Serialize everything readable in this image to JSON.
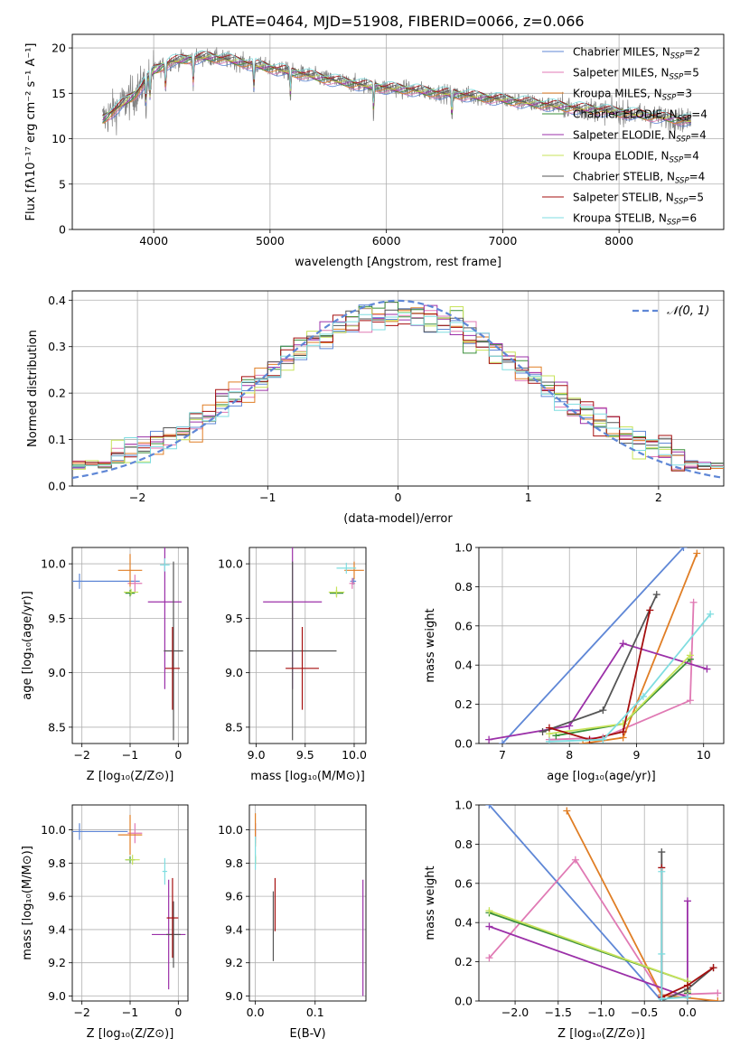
{
  "colors": {
    "Chabrier MILES": "#5f87d6",
    "Salpeter MILES": "#e07ab4",
    "Kroupa MILES": "#e07e25",
    "Chabrier ELODIE": "#3a8f3a",
    "Salpeter ELODIE": "#9b30a8",
    "Kroupa ELODIE": "#c7e35a",
    "Chabrier STELIB": "#555555",
    "Salpeter STELIB": "#a50f0f",
    "Kroupa STELIB": "#7fdde0"
  },
  "chart_data": [
    {
      "id": "spectrum",
      "type": "line",
      "title": "PLATE=0464, MJD=51908, FIBERID=0066, z=0.066",
      "xlabel": "wavelength [Angstrom, rest frame]",
      "ylabel": "Flux [fλ10⁻¹⁷ erg cm⁻² s⁻¹ A⁻¹]",
      "xlim": [
        3300,
        8900
      ],
      "ylim": [
        0,
        21.5
      ],
      "xticks": [
        4000,
        5000,
        6000,
        7000,
        8000
      ],
      "yticks": [
        0,
        5,
        10,
        15,
        20
      ],
      "legend_position": "top-right",
      "legend": [
        {
          "model": "Chabrier MILES",
          "nssp": "2"
        },
        {
          "model": "Salpeter MILES",
          "nssp": "5"
        },
        {
          "model": "Kroupa MILES",
          "nssp": "3"
        },
        {
          "model": "Chabrier ELODIE",
          "nssp": "4"
        },
        {
          "model": "Salpeter ELODIE",
          "nssp": "4"
        },
        {
          "model": "Kroupa ELODIE",
          "nssp": "4"
        },
        {
          "model": "Chabrier STELIB",
          "nssp": "4"
        },
        {
          "model": "Salpeter STELIB",
          "nssp": "5"
        },
        {
          "model": "Kroupa STELIB",
          "nssp": "6"
        }
      ],
      "data_continuum": {
        "x": [
          3550,
          3700,
          3850,
          4000,
          4150,
          4300,
          4450,
          4600,
          4800,
          5000,
          5200,
          5400,
          5600,
          5800,
          6000,
          6200,
          6400,
          6600,
          6800,
          7000,
          7200,
          7400,
          7600,
          7800,
          8000,
          8200,
          8400,
          8600
        ],
        "y": [
          12,
          13.5,
          15,
          17.5,
          18.5,
          18.8,
          19,
          18.8,
          18.3,
          17.8,
          17.3,
          16.8,
          16.3,
          15.9,
          15.6,
          15.4,
          15.1,
          14.9,
          14.6,
          14.3,
          14.0,
          13.7,
          13.4,
          13.2,
          12.9,
          12.6,
          12.3,
          12.0
        ]
      }
    },
    {
      "id": "residuals",
      "type": "histogram",
      "xlabel": "(data-model)/error",
      "ylabel": "Normed distribution",
      "xlim": [
        -2.5,
        2.5
      ],
      "ylim": [
        0,
        0.42
      ],
      "xticks": [
        -2,
        -1,
        0,
        1,
        2
      ],
      "yticks": [
        0.0,
        0.1,
        0.2,
        0.3,
        0.4
      ],
      "legend_position": "top-right",
      "reference_curve": {
        "label": "𝒩(0, 1)",
        "mean": 0,
        "sigma": 1
      },
      "bin_width": 0.1
    },
    {
      "id": "age-vs-Z",
      "type": "errorbar",
      "xlabel": "Z [log₁₀(Z/Z⊙)]",
      "ylabel": "age  [log₁₀(age/yr)]",
      "xlim": [
        -2.2,
        0.2
      ],
      "ylim": [
        8.35,
        10.15
      ],
      "xticks": [
        -2,
        -1,
        0
      ],
      "yticks": [
        8.5,
        9.0,
        9.5,
        10.0
      ],
      "points": [
        {
          "model": "Chabrier MILES",
          "x": -2.05,
          "xerr": 1.25,
          "y": 9.84,
          "yerr": 0.07
        },
        {
          "model": "Salpeter MILES",
          "x": -0.9,
          "xerr": 0.15,
          "y": 9.82,
          "yerr": 0.08
        },
        {
          "model": "Kroupa MILES",
          "x": -1.0,
          "xerr": 0.25,
          "y": 9.94,
          "yerr": 0.15
        },
        {
          "model": "Chabrier ELODIE",
          "x": -1.0,
          "xerr": 0.1,
          "y": 9.73,
          "yerr": 0.03
        },
        {
          "model": "Salpeter ELODIE",
          "x": -0.28,
          "xerr": 0.35,
          "y": 9.65,
          "yerr": 0.8
        },
        {
          "model": "Kroupa ELODIE",
          "x": -0.98,
          "xerr": 0.15,
          "y": 9.74,
          "yerr": 0.03
        },
        {
          "model": "Chabrier STELIB",
          "x": -0.1,
          "xerr": 0.2,
          "y": 9.2,
          "yerr": 0.82
        },
        {
          "model": "Salpeter STELIB",
          "x": -0.12,
          "xerr": 0.15,
          "y": 9.04,
          "yerr": 0.38
        },
        {
          "model": "Kroupa STELIB",
          "x": -0.28,
          "xerr": 0.1,
          "y": 9.99,
          "yerr": 0.06
        }
      ]
    },
    {
      "id": "age-vs-mass",
      "type": "errorbar",
      "xlabel": "mass [log₁₀(M/M⊙)]",
      "ylabel": "",
      "xlim": [
        8.93,
        10.12
      ],
      "ylim": [
        8.35,
        10.15
      ],
      "xticks": [
        9.0,
        9.5,
        10.0
      ],
      "yticks": [
        8.5,
        9.0,
        9.5,
        10.0
      ],
      "points": [
        {
          "model": "Chabrier MILES",
          "x": 9.99,
          "xerr": 0.03,
          "y": 9.84,
          "yerr": 0.03
        },
        {
          "model": "Salpeter MILES",
          "x": 9.98,
          "xerr": 0.03,
          "y": 9.82,
          "yerr": 0.05
        },
        {
          "model": "Kroupa MILES",
          "x": 10.0,
          "xerr": 0.1,
          "y": 9.94,
          "yerr": 0.08
        },
        {
          "model": "Chabrier ELODIE",
          "x": 9.82,
          "xerr": 0.07,
          "y": 9.73,
          "yerr": 0.03
        },
        {
          "model": "Salpeter ELODIE",
          "x": 9.37,
          "xerr": 0.3,
          "y": 9.65,
          "yerr": 0.8
        },
        {
          "model": "Kroupa ELODIE",
          "x": 9.82,
          "xerr": 0.08,
          "y": 9.74,
          "yerr": 0.05
        },
        {
          "model": "Chabrier STELIB",
          "x": 9.37,
          "xerr": 0.45,
          "y": 9.2,
          "yerr": 0.82
        },
        {
          "model": "Salpeter STELIB",
          "x": 9.47,
          "xerr": 0.17,
          "y": 9.04,
          "yerr": 0.38
        },
        {
          "model": "Kroupa STELIB",
          "x": 9.92,
          "xerr": 0.1,
          "y": 9.96,
          "yerr": 0.05
        }
      ]
    },
    {
      "id": "mass-weight-vs-age",
      "type": "line",
      "xlabel": "age  [log₁₀(age/yr)]",
      "ylabel": "mass weight",
      "xlim": [
        6.65,
        10.3
      ],
      "ylim": [
        0,
        1
      ],
      "xticks": [
        7,
        8,
        9,
        10
      ],
      "yticks": [
        0.0,
        0.2,
        0.4,
        0.6,
        0.8,
        1.0
      ],
      "series": [
        {
          "model": "Chabrier MILES",
          "x": [
            7.0,
            9.7
          ],
          "y": [
            0.0,
            1.0
          ]
        },
        {
          "model": "Salpeter MILES",
          "x": [
            7.7,
            8.5,
            9.8,
            9.85
          ],
          "y": [
            0.02,
            0.03,
            0.22,
            0.72
          ]
        },
        {
          "model": "Kroupa MILES",
          "x": [
            8.2,
            8.8,
            9.9
          ],
          "y": [
            0.0,
            0.03,
            0.97
          ]
        },
        {
          "model": "Chabrier ELODIE",
          "x": [
            7.8,
            8.8,
            9.8
          ],
          "y": [
            0.04,
            0.1,
            0.43
          ]
        },
        {
          "model": "Salpeter ELODIE",
          "x": [
            6.8,
            8.0,
            8.8,
            10.05
          ],
          "y": [
            0.02,
            0.09,
            0.51,
            0.38
          ]
        },
        {
          "model": "Kroupa ELODIE",
          "x": [
            7.7,
            8.8,
            9.8
          ],
          "y": [
            0.05,
            0.1,
            0.45
          ]
        },
        {
          "model": "Chabrier STELIB",
          "x": [
            7.6,
            8.5,
            9.3
          ],
          "y": [
            0.06,
            0.17,
            0.76
          ]
        },
        {
          "model": "Salpeter STELIB",
          "x": [
            7.7,
            8.3,
            8.8,
            9.2
          ],
          "y": [
            0.08,
            0.02,
            0.06,
            0.68
          ]
        },
        {
          "model": "Kroupa STELIB",
          "x": [
            7.7,
            8.5,
            9.1,
            10.1
          ],
          "y": [
            0.01,
            0.02,
            0.24,
            0.66
          ]
        }
      ]
    },
    {
      "id": "mass-vs-Z",
      "type": "errorbar",
      "xlabel": "Z [log₁₀(Z/Z⊙)]",
      "ylabel": "mass [log₁₀(M/M⊙)]",
      "xlim": [
        -2.2,
        0.2
      ],
      "ylim": [
        8.97,
        10.15
      ],
      "xticks": [
        -2,
        -1,
        0
      ],
      "yticks": [
        9.0,
        9.2,
        9.4,
        9.6,
        9.8,
        10.0
      ],
      "points": [
        {
          "model": "Chabrier MILES",
          "x": -2.05,
          "xerr": 1.0,
          "y": 9.99,
          "yerr": 0.05
        },
        {
          "model": "Salpeter MILES",
          "x": -0.9,
          "xerr": 0.15,
          "y": 9.98,
          "yerr": 0.06
        },
        {
          "model": "Kroupa MILES",
          "x": -1.0,
          "xerr": 0.25,
          "y": 9.97,
          "yerr": 0.12
        },
        {
          "model": "Chabrier ELODIE",
          "x": -1.0,
          "xerr": 0.1,
          "y": 9.82,
          "yerr": 0.02
        },
        {
          "model": "Salpeter ELODIE",
          "x": -0.2,
          "xerr": 0.35,
          "y": 9.37,
          "yerr": 0.33
        },
        {
          "model": "Kroupa ELODIE",
          "x": -0.95,
          "xerr": 0.15,
          "y": 9.82,
          "yerr": 0.03
        },
        {
          "model": "Chabrier STELIB",
          "x": -0.1,
          "xerr": 0.15,
          "y": 9.37,
          "yerr": 0.2
        },
        {
          "model": "Salpeter STELIB",
          "x": -0.12,
          "xerr": 0.12,
          "y": 9.47,
          "yerr": 0.24
        },
        {
          "model": "Kroupa STELIB",
          "x": -0.28,
          "xerr": 0.05,
          "y": 9.75,
          "yerr": 0.08
        }
      ]
    },
    {
      "id": "mass-vs-ebv",
      "type": "errorbar",
      "xlabel": "E(B-V)",
      "ylabel": "",
      "xlim": [
        -0.01,
        0.185
      ],
      "ylim": [
        8.97,
        10.15
      ],
      "xticks": [
        0.0,
        0.1
      ],
      "yticks": [
        9.0,
        9.2,
        9.4,
        9.6,
        9.8,
        10.0
      ],
      "points": [
        {
          "model": "Chabrier MILES",
          "x": 0.0,
          "xerr": 0.0,
          "y": 9.99,
          "yerr": 0.05
        },
        {
          "model": "Salpeter MILES",
          "x": 0.0,
          "xerr": 0.0,
          "y": 9.98,
          "yerr": 0.06
        },
        {
          "model": "Kroupa MILES",
          "x": 0.0,
          "xerr": 0.0,
          "y": 10.0,
          "yerr": 0.1
        },
        {
          "model": "Chabrier ELODIE",
          "x": 0.0,
          "xerr": 0.0,
          "y": 9.82,
          "yerr": 0.02
        },
        {
          "model": "Salpeter ELODIE",
          "x": 0.18,
          "xerr": 0.0,
          "y": 9.35,
          "yerr": 0.35
        },
        {
          "model": "Kroupa ELODIE",
          "x": 0.0,
          "xerr": 0.0,
          "y": 9.82,
          "yerr": 0.03
        },
        {
          "model": "Chabrier STELIB",
          "x": 0.03,
          "xerr": 0.0,
          "y": 9.42,
          "yerr": 0.21
        },
        {
          "model": "Salpeter STELIB",
          "x": 0.033,
          "xerr": 0.0,
          "y": 9.55,
          "yerr": 0.16
        },
        {
          "model": "Kroupa STELIB",
          "x": 0.0,
          "xerr": 0.0,
          "y": 9.86,
          "yerr": 0.1
        }
      ]
    },
    {
      "id": "mass-weight-vs-Z",
      "type": "line",
      "xlabel": "Z [log₁₀(Z/Z⊙)]",
      "ylabel": "mass weight",
      "xlim": [
        -2.42,
        0.42
      ],
      "ylim": [
        0,
        1
      ],
      "xticks": [
        -2.0,
        -1.5,
        -1.0,
        -0.5,
        0.0
      ],
      "yticks": [
        0.0,
        0.2,
        0.4,
        0.6,
        0.8,
        1.0
      ],
      "series": [
        {
          "model": "Chabrier MILES",
          "x": [
            -2.3,
            -0.3
          ],
          "y": [
            1.0,
            0.0
          ]
        },
        {
          "model": "Salpeter MILES",
          "x": [
            -2.3,
            -1.3,
            -0.3,
            0.35
          ],
          "y": [
            0.22,
            0.72,
            0.03,
            0.04
          ]
        },
        {
          "model": "Kroupa MILES",
          "x": [
            -1.4,
            -0.3,
            0.35
          ],
          "y": [
            0.97,
            0.03,
            0.0
          ]
        },
        {
          "model": "Chabrier ELODIE",
          "x": [
            -2.3,
            0.0,
            0.0
          ],
          "y": [
            0.45,
            0.1,
            0.04
          ]
        },
        {
          "model": "Salpeter ELODIE",
          "x": [
            -2.3,
            0.0,
            0.0
          ],
          "y": [
            0.38,
            0.02,
            0.51
          ]
        },
        {
          "model": "Kroupa ELODIE",
          "x": [
            -2.3,
            0.0,
            0.0
          ],
          "y": [
            0.46,
            0.1,
            0.05
          ]
        },
        {
          "model": "Chabrier STELIB",
          "x": [
            -0.3,
            -0.3,
            0.0,
            0.3
          ],
          "y": [
            0.76,
            0.0,
            0.06,
            0.17
          ]
        },
        {
          "model": "Salpeter STELIB",
          "x": [
            -0.3,
            -0.3,
            0.0,
            0.3
          ],
          "y": [
            0.68,
            0.02,
            0.08,
            0.17
          ]
        },
        {
          "model": "Kroupa STELIB",
          "x": [
            -0.3,
            -0.3,
            -0.3,
            0.0
          ],
          "y": [
            0.66,
            0.24,
            0.01,
            0.02
          ]
        }
      ]
    }
  ]
}
